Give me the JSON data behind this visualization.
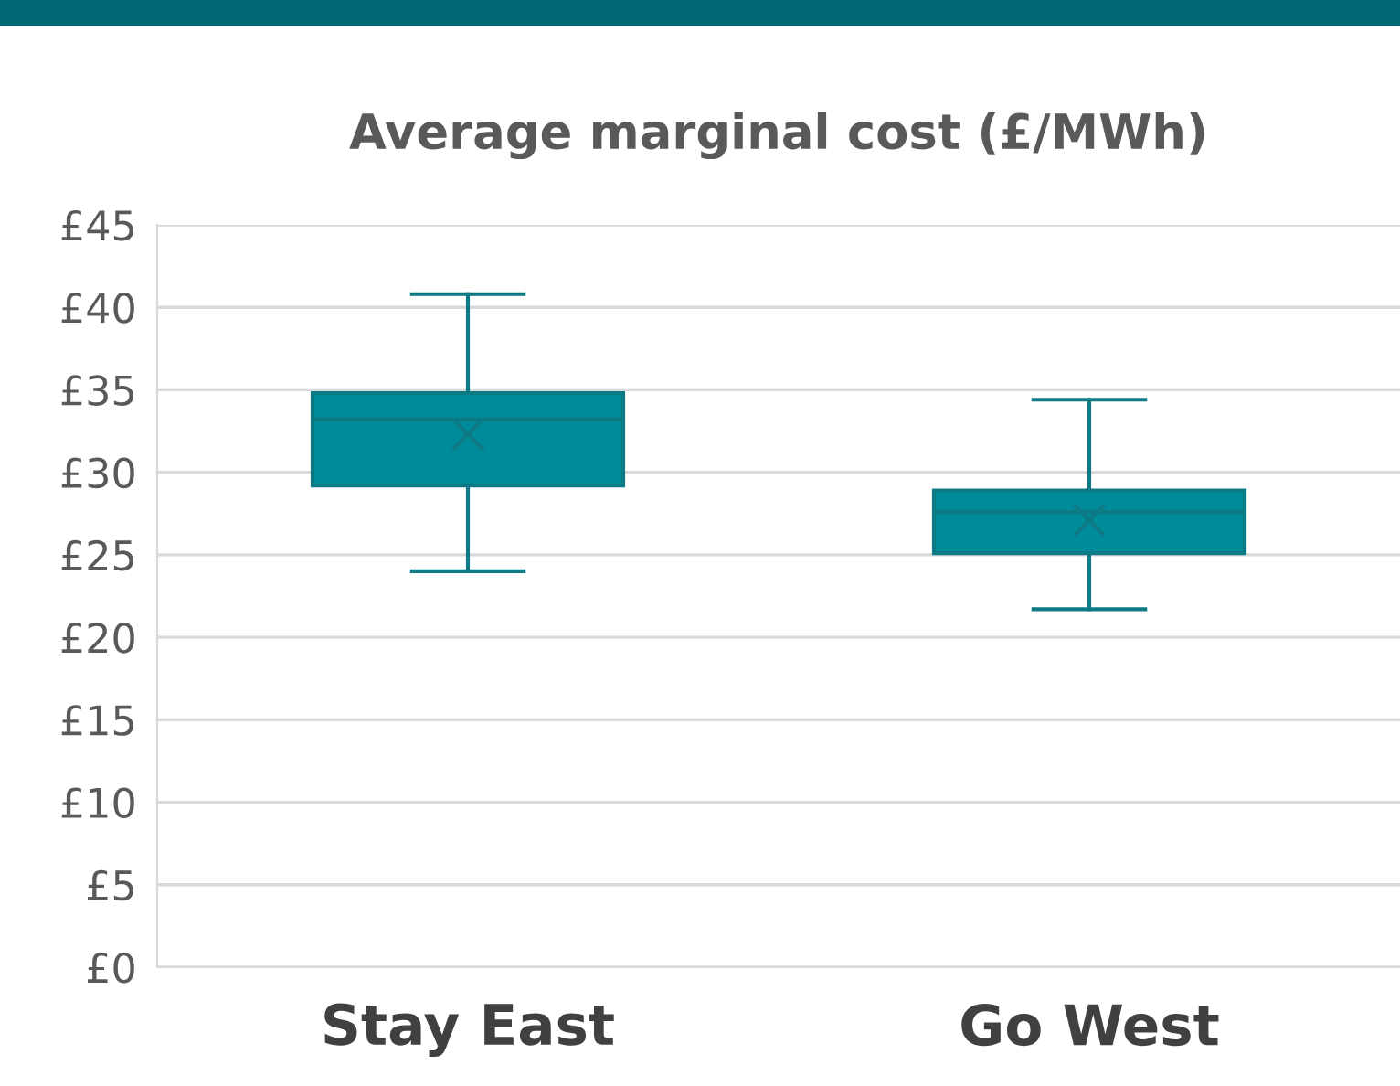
{
  "chart_data": {
    "type": "box",
    "title": "Average marginal cost (£/MWh)",
    "categories": [
      "Stay East",
      "Go West"
    ],
    "boxes": [
      {
        "low": 24.0,
        "q1": 29.2,
        "median": 33.2,
        "q3": 34.8,
        "high": 40.8,
        "mean": 32.3
      },
      {
        "low": 21.7,
        "q1": 25.1,
        "median": 27.6,
        "q3": 28.9,
        "high": 34.4,
        "mean": 27.1
      }
    ],
    "color": "#008b9a",
    "ylim": [
      0,
      45
    ],
    "yticks": [
      {
        "value": 0,
        "label": "£0"
      },
      {
        "value": 5,
        "label": "£5"
      },
      {
        "value": 10,
        "label": "£10"
      },
      {
        "value": 15,
        "label": "£15"
      },
      {
        "value": 20,
        "label": "£20"
      },
      {
        "value": 25,
        "label": "£25"
      },
      {
        "value": 30,
        "label": "£30"
      },
      {
        "value": 35,
        "label": "£35"
      },
      {
        "value": 40,
        "label": "£40"
      },
      {
        "value": 45,
        "label": "£45"
      }
    ],
    "grid": "y",
    "marker": "cross"
  }
}
